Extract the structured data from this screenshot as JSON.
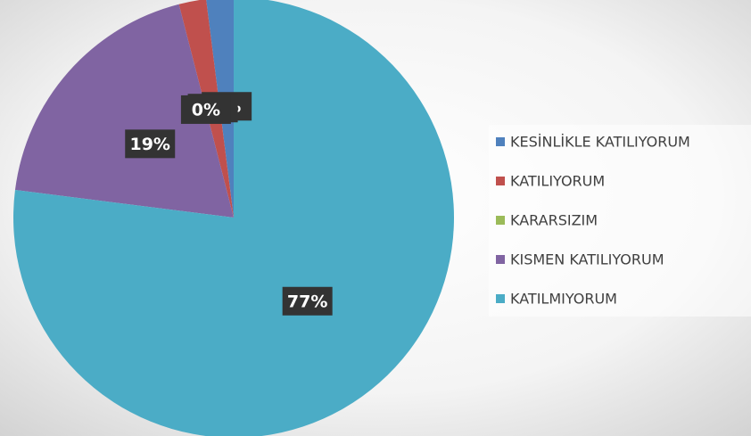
{
  "chart_data": {
    "type": "pie",
    "categories": [
      "KESİNLİKLE KATILIYORUM",
      "KATILIYORUM",
      "KARARSIZIM",
      "KISMEN KATILIYORUM",
      "KATILMIYORUM"
    ],
    "values": [
      2,
      2,
      0,
      19,
      77
    ],
    "value_labels": [
      "2%",
      "2%",
      "0%",
      "19%",
      "77%"
    ],
    "colors": [
      "#4f81bd",
      "#c0504d",
      "#9bbb59",
      "#8064a2",
      "#4bacc6"
    ],
    "legend": "right"
  }
}
